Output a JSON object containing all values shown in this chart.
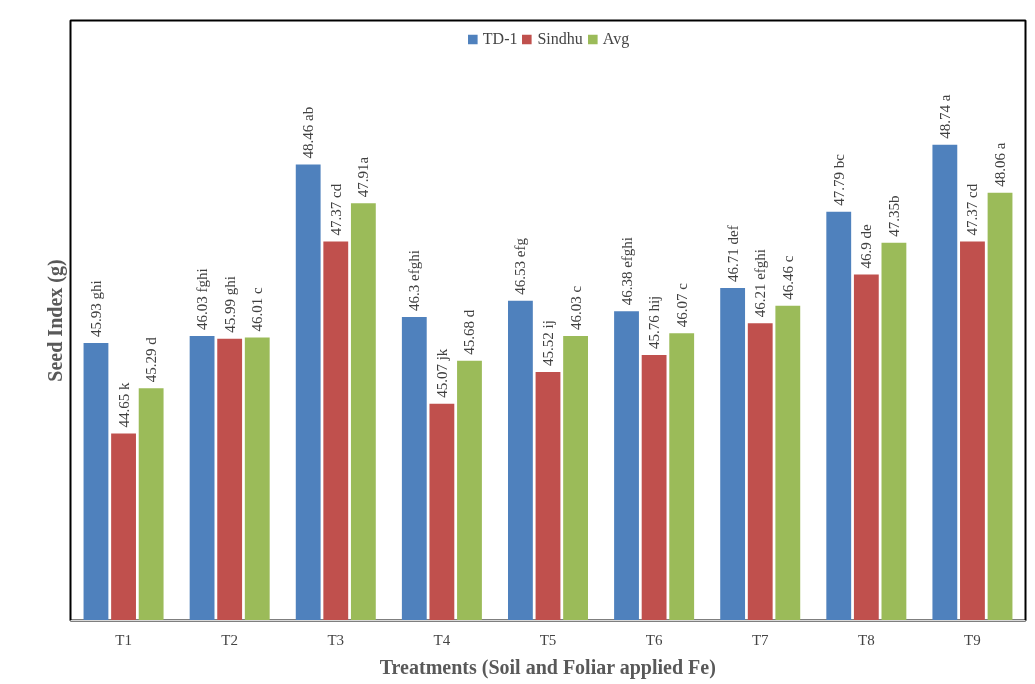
{
  "chart_data": {
    "type": "bar",
    "xlabel": "Treatments (Soil and Foliar applied Fe)",
    "ylabel": "Seed Index (g)",
    "categories": [
      "T1",
      "T2",
      "T3",
      "T4",
      "T5",
      "T6",
      "T7",
      "T8",
      "T9"
    ],
    "series": [
      {
        "name": "TD-1",
        "color": "#4f81bd",
        "values": [
          45.93,
          46.03,
          48.46,
          46.3,
          46.53,
          46.38,
          46.71,
          47.79,
          48.74
        ],
        "value_labels": [
          "45.93 ghi",
          "46.03 fghi",
          "48.46 ab",
          "46.3 efghi",
          "46.53 efg",
          "46.38 efghi",
          "46.71 def",
          "47.79 bc",
          "48.74 a"
        ]
      },
      {
        "name": "Sindhu",
        "color": "#c0504d",
        "values": [
          44.65,
          45.99,
          47.37,
          45.07,
          45.52,
          45.76,
          46.21,
          46.9,
          47.37
        ],
        "value_labels": [
          "44.65 k",
          "45.99 ghi",
          "47.37 cd",
          "45.07 jk",
          "45.52 ij",
          "45.76 hij",
          "46.21 efghi",
          "46.9 de",
          "47.37 cd"
        ]
      },
      {
        "name": "Avg",
        "color": "#9bbb59",
        "values": [
          45.29,
          46.01,
          47.91,
          45.68,
          46.03,
          46.07,
          46.46,
          47.35,
          48.06
        ],
        "value_labels": [
          "45.29 d",
          "46.01 c",
          "47.91a",
          "45.68 d",
          "46.03 c",
          "46.07 c",
          "46.46 c",
          "47.35b",
          "48.06 a"
        ]
      }
    ],
    "ylim": [
      42,
      50.5
    ],
    "tick_labels": "x",
    "grid": false,
    "legend": "top"
  }
}
